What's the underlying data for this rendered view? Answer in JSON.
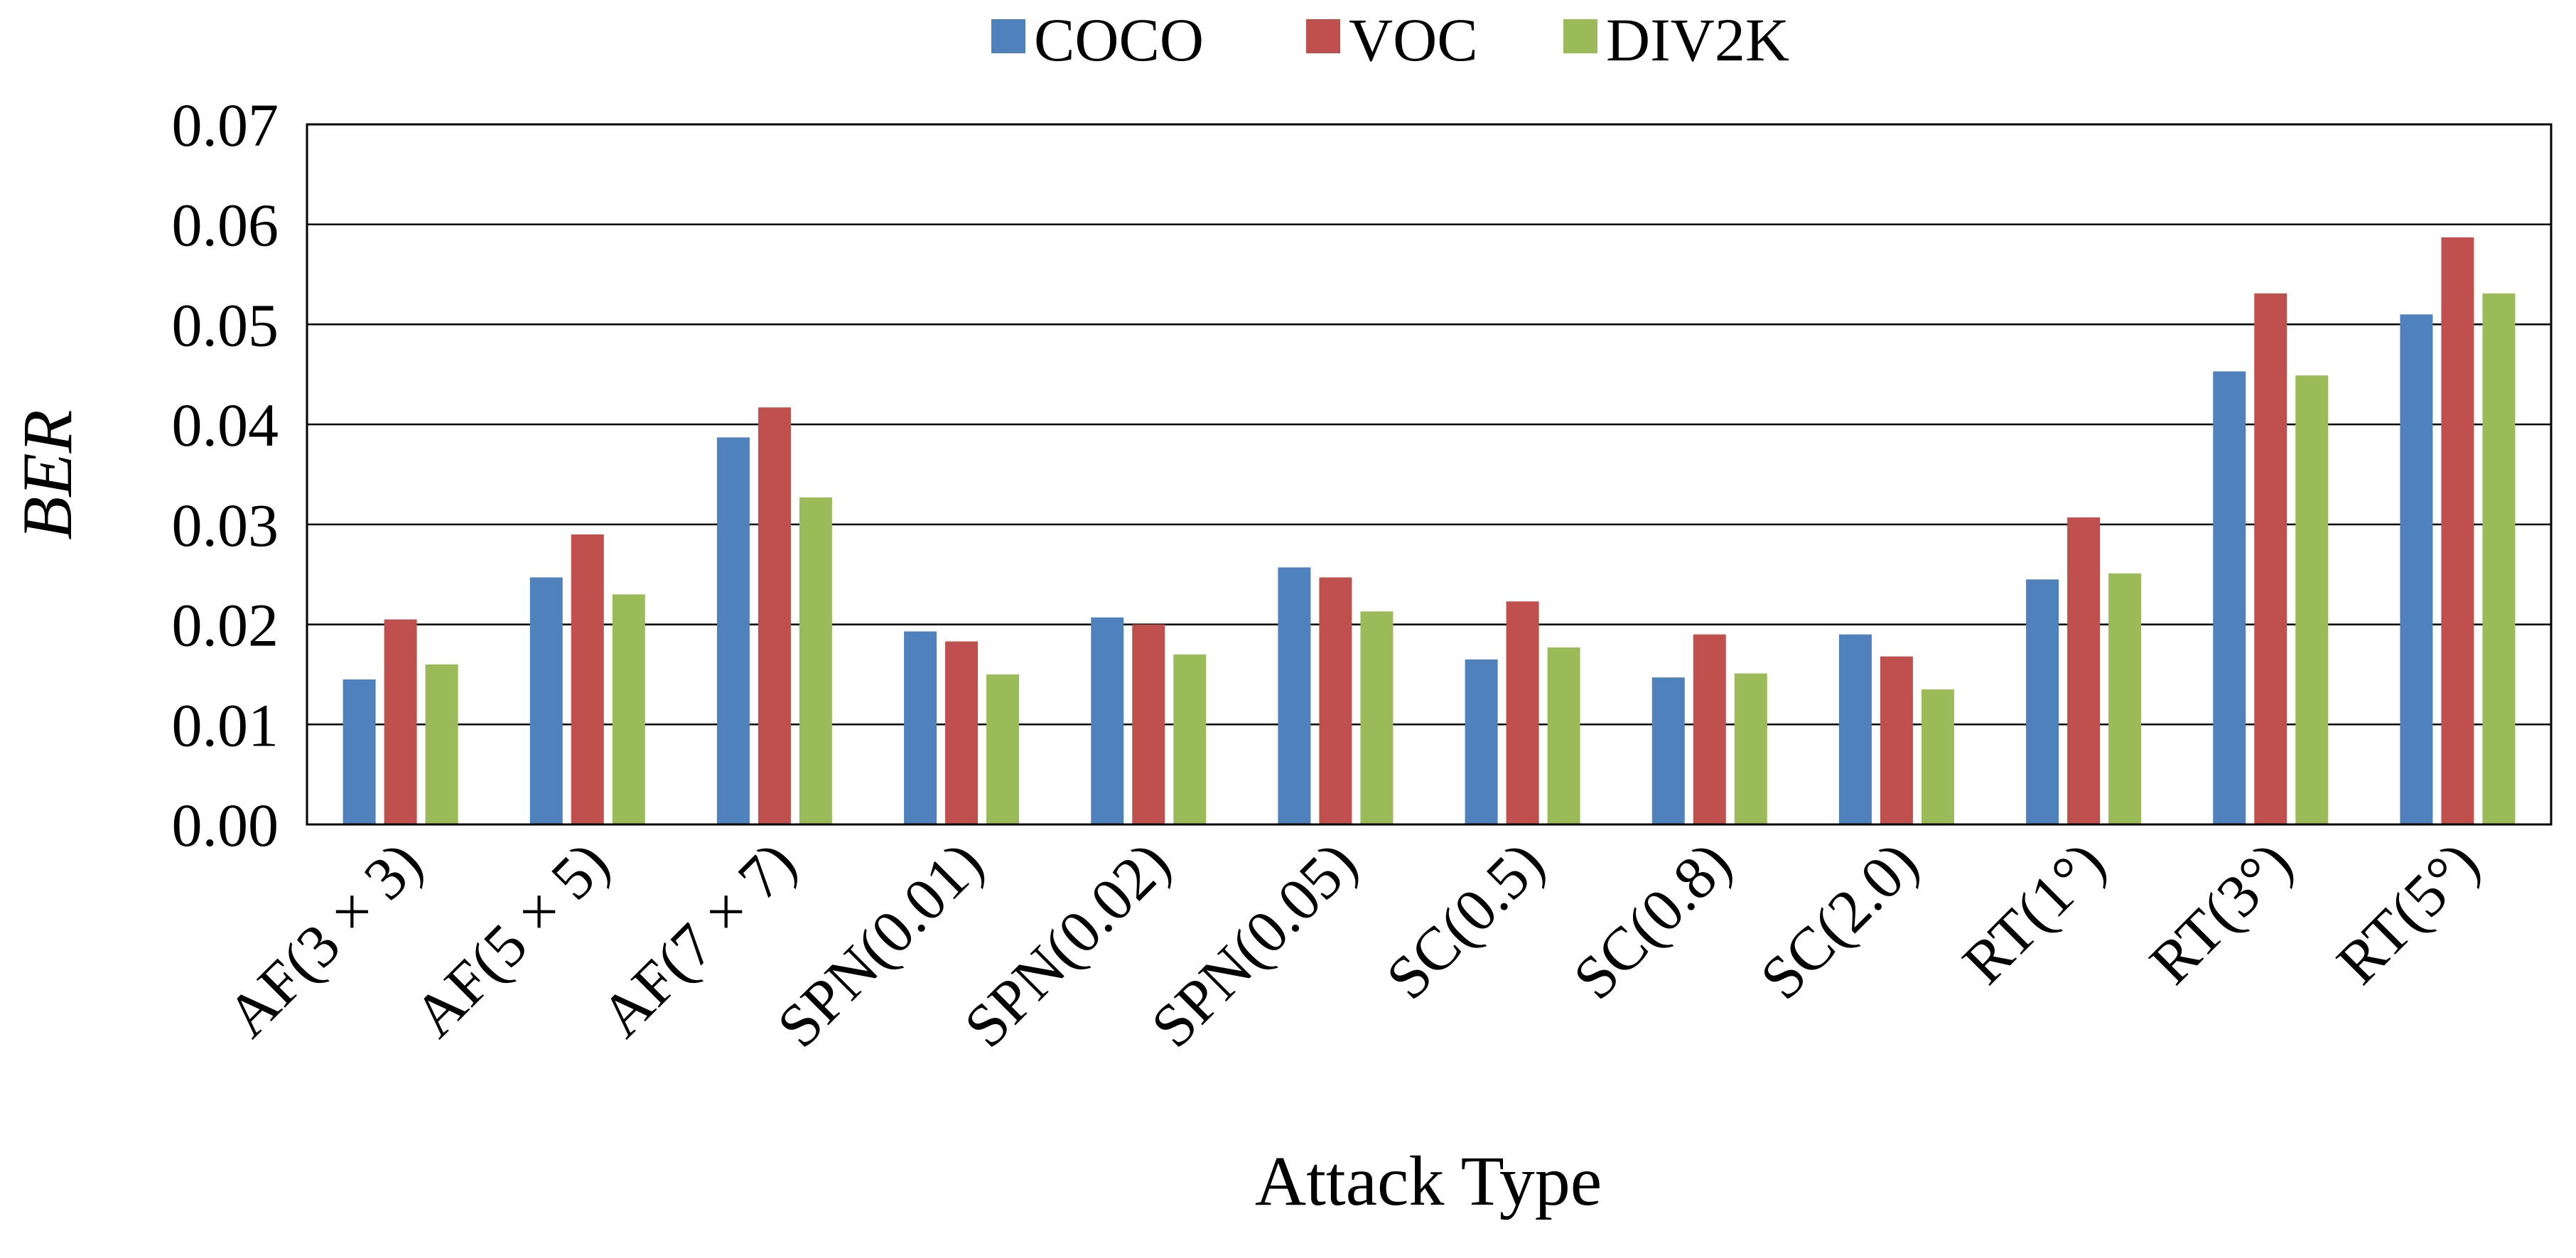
{
  "chart_data": {
    "type": "bar",
    "title": "",
    "xlabel": "Attack Type",
    "ylabel": "BER",
    "ylim": [
      0,
      0.07
    ],
    "yticks": [
      "0.00",
      "0.01",
      "0.02",
      "0.03",
      "0.04",
      "0.05",
      "0.06",
      "0.07"
    ],
    "grid": true,
    "legend_position": "top-center",
    "categories": [
      "AF(3 × 3)",
      "AF(5 × 5)",
      "AF(7 × 7)",
      "SPN(0.01)",
      "SPN(0.02)",
      "SPN(0.05)",
      "SC(0.5)",
      "SC(0.8)",
      "SC(2.0)",
      "RT(1°)",
      "RT(3°)",
      "RT(5°)"
    ],
    "series": [
      {
        "name": "COCO",
        "color": "#4f81bd",
        "values": [
          0.0145,
          0.0247,
          0.0387,
          0.0193,
          0.0207,
          0.0257,
          0.0165,
          0.0147,
          0.019,
          0.0245,
          0.0453,
          0.051
        ]
      },
      {
        "name": "VOC",
        "color": "#c0504d",
        "values": [
          0.0205,
          0.029,
          0.0417,
          0.0183,
          0.02,
          0.0247,
          0.0223,
          0.019,
          0.0168,
          0.0307,
          0.0531,
          0.0587
        ]
      },
      {
        "name": "DIV2K",
        "color": "#9bbb59",
        "values": [
          0.016,
          0.023,
          0.0327,
          0.015,
          0.017,
          0.0213,
          0.0177,
          0.0151,
          0.0135,
          0.0251,
          0.0449,
          0.0531
        ]
      }
    ]
  }
}
